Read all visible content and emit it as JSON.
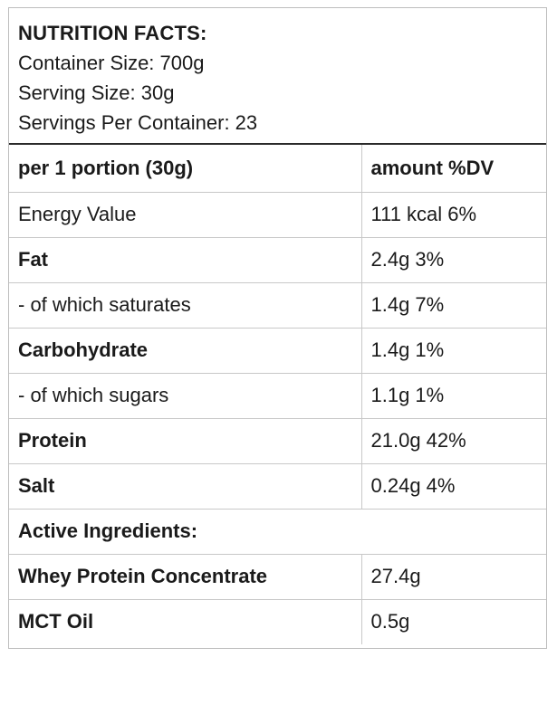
{
  "header": {
    "title": "NUTRITION FACTS:",
    "container_size": "Container Size: 700g",
    "serving_size": "Serving Size: 30g",
    "servings_per_container": "Servings Per Container: 23"
  },
  "table": {
    "col_portion": "per 1 portion (30g)",
    "col_amount": "amount %DV",
    "rows": [
      {
        "label": "Energy Value",
        "value": "111 kcal 6%"
      },
      {
        "label": "Fat",
        "value": "2.4g 3%"
      },
      {
        "label": "- of which saturates",
        "value": "1.4g 7%"
      },
      {
        "label": "Carbohydrate",
        "value": "1.4g 1%"
      },
      {
        "label": "- of which sugars",
        "value": "1.1g 1%"
      },
      {
        "label": "Protein",
        "value": "21.0g 42%"
      },
      {
        "label": "Salt",
        "value": "0.24g 4%"
      }
    ],
    "active_heading": "Active Ingredients:",
    "active_rows": [
      {
        "label": "Whey Protein Concentrate",
        "value": "27.4g"
      },
      {
        "label": "MCT Oil",
        "value": "0.5g"
      }
    ]
  }
}
